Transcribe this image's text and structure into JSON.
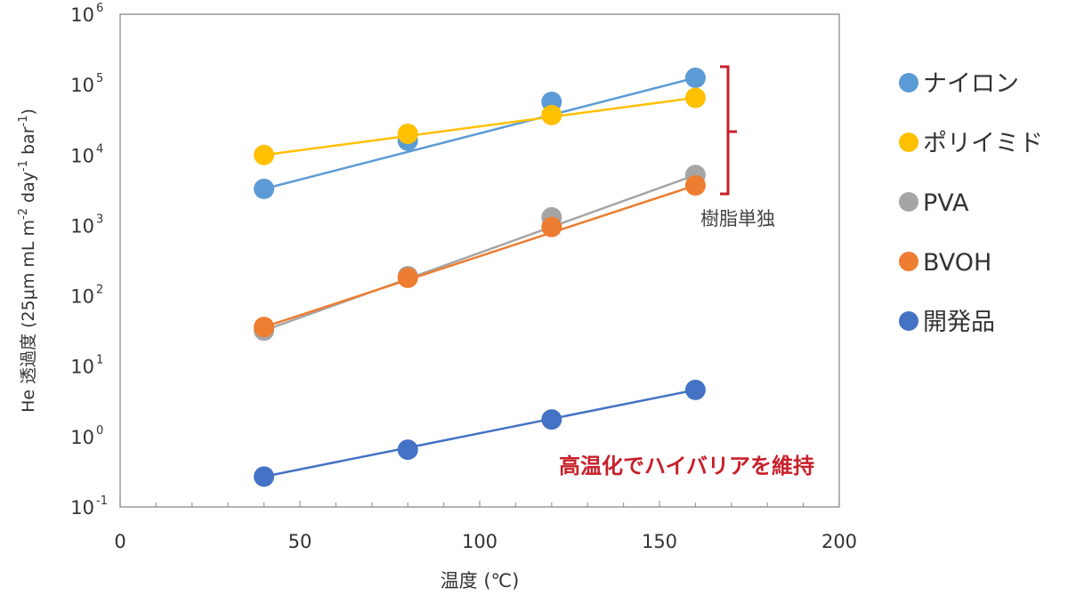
{
  "chart_data": {
    "type": "scatter",
    "xlabel": "温度 (℃)",
    "ylabel": "He 透過度 (25 µm mL m⁻² day⁻¹ bar⁻¹)",
    "ylabel_parts": {
      "main": "He 透過度 (25",
      "mu": "μ",
      "unit1": "m mL m",
      "sup1": "-2",
      "unit2": " day",
      "sup2": "-1",
      "unit3": " bar",
      "sup3": "-1",
      "close": ")"
    },
    "xlim": [
      0,
      200
    ],
    "ylim_log10": [
      -1,
      6
    ],
    "yscale": "log",
    "x_ticks": [
      0,
      50,
      100,
      150,
      200
    ],
    "y_ticks": [
      {
        "exp": -1,
        "base": "10",
        "sup": "-1"
      },
      {
        "exp": 0,
        "base": "10",
        "sup": "0"
      },
      {
        "exp": 1,
        "base": "10",
        "sup": "1"
      },
      {
        "exp": 2,
        "base": "10",
        "sup": "2"
      },
      {
        "exp": 3,
        "base": "10",
        "sup": "3"
      },
      {
        "exp": 4,
        "base": "10",
        "sup": "4"
      },
      {
        "exp": 5,
        "base": "10",
        "sup": "5"
      },
      {
        "exp": 6,
        "base": "10",
        "sup": "6"
      }
    ],
    "x": [
      40,
      80,
      120,
      160
    ],
    "series": [
      {
        "name": "ナイロン",
        "color": "#5b9bd5",
        "values": [
          3300,
          16000,
          57000,
          125000
        ]
      },
      {
        "name": "ポリイミド",
        "color": "#ffc000",
        "values": [
          10000,
          20000,
          37000,
          65000
        ]
      },
      {
        "name": "PVA",
        "color": "#a5a5a5",
        "values": [
          32,
          190,
          1300,
          5200
        ]
      },
      {
        "name": "BVOH",
        "color": "#ed7d31",
        "values": [
          36,
          180,
          950,
          3700
        ]
      },
      {
        "name": "開発品",
        "color": "#4472c4",
        "values": [
          0.27,
          0.65,
          1.75,
          4.6
        ]
      }
    ],
    "legend_position": "right",
    "bracket_label": "樹脂単独",
    "bracket_color": "#c8202a",
    "annotation": "高温化でハイバリアを維持",
    "annotation_color": "#c8202a"
  }
}
